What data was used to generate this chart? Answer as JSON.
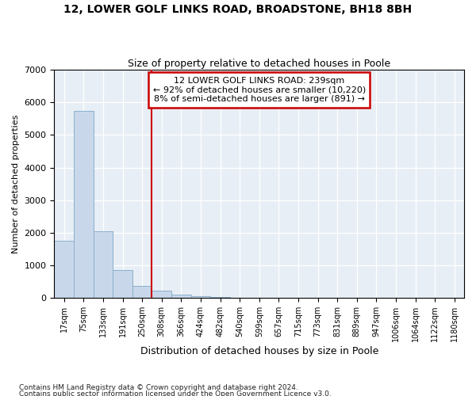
{
  "title": "12, LOWER GOLF LINKS ROAD, BROADSTONE, BH18 8BH",
  "subtitle": "Size of property relative to detached houses in Poole",
  "xlabel": "Distribution of detached houses by size in Poole",
  "ylabel": "Number of detached properties",
  "footnote1": "Contains HM Land Registry data © Crown copyright and database right 2024.",
  "footnote2": "Contains public sector information licensed under the Open Government Licence v3.0.",
  "annotation_line1": "12 LOWER GOLF LINKS ROAD: 239sqm",
  "annotation_line2": "← 92% of detached houses are smaller (10,220)",
  "annotation_line3": "8% of semi-detached houses are larger (891) →",
  "bar_color": "#c8d8ea",
  "bar_edge_color": "#8ab0cc",
  "vline_color": "#cc0000",
  "annotation_box_edgecolor": "#cc0000",
  "bg_color": "#e8eef5",
  "grid_color": "#ffffff",
  "categories": [
    "17sqm",
    "75sqm",
    "133sqm",
    "191sqm",
    "250sqm",
    "308sqm",
    "366sqm",
    "424sqm",
    "482sqm",
    "540sqm",
    "599sqm",
    "657sqm",
    "715sqm",
    "773sqm",
    "831sqm",
    "889sqm",
    "947sqm",
    "1006sqm",
    "1064sqm",
    "1122sqm",
    "1180sqm"
  ],
  "values": [
    1750,
    5750,
    2050,
    850,
    370,
    230,
    110,
    60,
    30,
    10,
    10,
    0,
    0,
    0,
    0,
    0,
    0,
    0,
    0,
    0,
    0
  ],
  "vline_pos": 4.5,
  "ylim": [
    0,
    7000
  ],
  "yticks": [
    0,
    1000,
    2000,
    3000,
    4000,
    5000,
    6000,
    7000
  ],
  "n_cats": 21
}
